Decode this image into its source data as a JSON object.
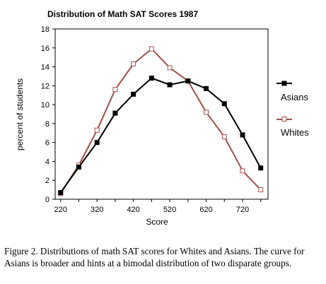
{
  "chart_data": {
    "type": "line",
    "title": "Distribution of Math SAT Scores 1987",
    "xlabel": "Score",
    "ylabel": "percent of students",
    "x": [
      220,
      270,
      320,
      370,
      420,
      470,
      520,
      570,
      620,
      670,
      720,
      770
    ],
    "xticks": [
      220,
      320,
      420,
      520,
      620,
      720
    ],
    "xlim": [
      205,
      790
    ],
    "ylim": [
      0,
      18
    ],
    "yticks": [
      0,
      2,
      4,
      6,
      8,
      10,
      12,
      14,
      16,
      18
    ],
    "grid": false,
    "legend_position": "right",
    "series": [
      {
        "name": "Asians",
        "color": "#000000",
        "marker": "filled-square",
        "values": [
          0.7,
          3.4,
          6.0,
          9.1,
          11.1,
          12.8,
          12.1,
          12.5,
          11.7,
          10.1,
          6.8,
          3.3
        ]
      },
      {
        "name": "Whites",
        "color": "#a0504c",
        "marker": "open-square",
        "values": [
          0.6,
          3.6,
          7.3,
          11.6,
          14.3,
          15.9,
          13.9,
          12.5,
          9.2,
          6.6,
          3.0,
          1.0
        ]
      }
    ]
  },
  "caption": "Figure 2.  Distributions of math SAT scores for Whites and Asians. The curve for Asians is broader and hints at a bimodal distribution of two disparate groups."
}
